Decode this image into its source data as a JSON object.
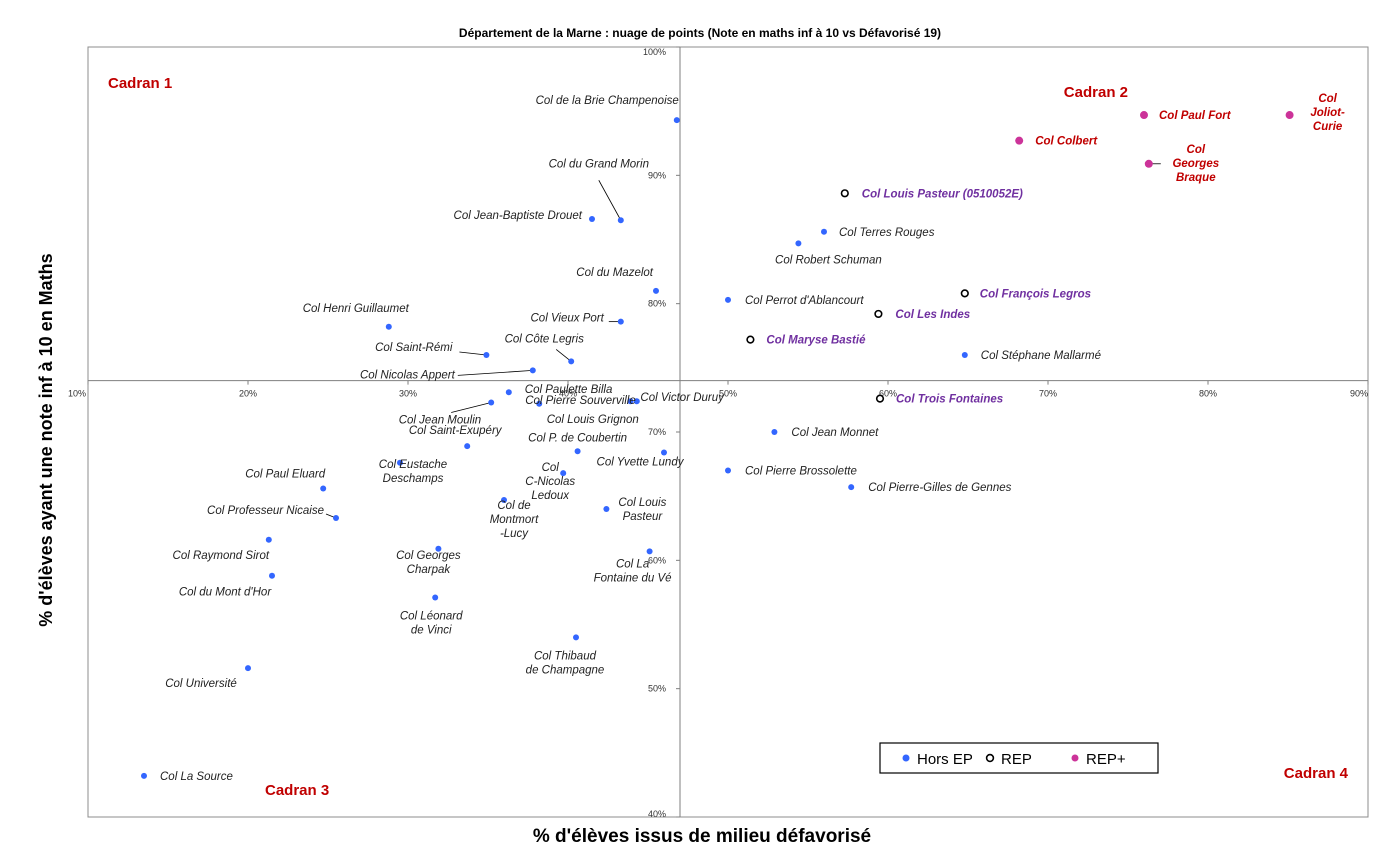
{
  "chart_data": {
    "type": "scatter",
    "title": "Département de la Marne :  nuage de points (Note en maths inf à 10 vs Défavorisé 19)",
    "xlabel": "% d'élèves issus de milieu défavorisé",
    "ylabel": "% d'élèves ayant une note  inf à 10 en Maths",
    "xlim": [
      10,
      90
    ],
    "ylim": [
      40,
      100
    ],
    "cross_at": {
      "x": 47,
      "y": 74
    },
    "x_ticks": [
      "10%",
      "20%",
      "30%",
      "40%",
      "50%",
      "60%",
      "70%",
      "80%",
      "90%"
    ],
    "y_ticks": [
      "40%",
      "50%",
      "60%",
      "70%",
      "80%",
      "90%",
      "100%"
    ],
    "grid": false,
    "legend_position": "bottom-right",
    "legend": [
      {
        "name": "Hors EP",
        "marker": "filled",
        "color": "#3366ff"
      },
      {
        "name": "REP",
        "marker": "ring",
        "color": "#000000"
      },
      {
        "name": "REP+",
        "marker": "filled",
        "color": "#cc3399"
      }
    ],
    "quadrants": [
      "Cadran 1",
      "Cadran 2",
      "Cadran 3",
      "Cadran 4"
    ],
    "colors": {
      "Hors EP": "#3366ff",
      "REP": "#000000",
      "REP+": "#cc3399",
      "rep_label": "#7030a0",
      "repplus_label": "#c00000",
      "hors_label": "#222222",
      "quadrant": "#c00000"
    },
    "points": [
      {
        "label": "Col de la Brie Champenoise",
        "x": 46.8,
        "y": 94.3,
        "cat": "Hors EP"
      },
      {
        "label": "Col du Grand Morin",
        "x": 43.3,
        "y": 86.5,
        "cat": "Hors EP"
      },
      {
        "label": "Col Jean-Baptiste Drouet",
        "x": 41.5,
        "y": 86.6,
        "cat": "Hors EP"
      },
      {
        "label": "Col du Mazelot",
        "x": 45.5,
        "y": 81.0,
        "cat": "Hors EP"
      },
      {
        "label": "Col Henri Guillaumet",
        "x": 28.8,
        "y": 78.2,
        "cat": "Hors EP"
      },
      {
        "label": "Col Vieux Port",
        "x": 43.3,
        "y": 78.6,
        "cat": "Hors EP"
      },
      {
        "label": "Col Saint-Rémi",
        "x": 34.9,
        "y": 76.0,
        "cat": "Hors EP"
      },
      {
        "label": "Col Côte Legris",
        "x": 40.2,
        "y": 75.5,
        "cat": "Hors EP"
      },
      {
        "label": "Col Nicolas Appert",
        "x": 37.8,
        "y": 74.8,
        "cat": "Hors EP"
      },
      {
        "label": "Col Paulette Billa",
        "x": 36.3,
        "y": 73.1,
        "cat": "Hors EP"
      },
      {
        "label": "Col Jean Moulin",
        "x": 35.2,
        "y": 72.3,
        "cat": "Hors EP"
      },
      {
        "label": "Col Pierre Souverville",
        "x": 38.2,
        "y": 72.2,
        "cat": "Hors EP"
      },
      {
        "label": "Col Victor Duruy",
        "x": 43.9,
        "y": 72.4,
        "cat": "Hors EP"
      },
      {
        "label": "Col Louis Grignon",
        "x": 44.3,
        "y": 72.4,
        "cat": "Hors EP"
      },
      {
        "label": "Col P. de Coubertin",
        "x": 40.6,
        "y": 68.5,
        "cat": "Hors EP"
      },
      {
        "label": "Col Yvette Lundy",
        "x": 46.0,
        "y": 68.4,
        "cat": "Hors EP"
      },
      {
        "label": "Col Saint-Exupéry",
        "x": 33.7,
        "y": 68.9,
        "cat": "Hors EP"
      },
      {
        "label": "Col C-Nicolas Ledoux",
        "x": 39.7,
        "y": 66.8,
        "cat": "Hors EP"
      },
      {
        "label": "Col Eustache Deschamps",
        "x": 29.5,
        "y": 67.6,
        "cat": "Hors EP"
      },
      {
        "label": "Col Paul Eluard",
        "x": 24.7,
        "y": 65.6,
        "cat": "Hors EP"
      },
      {
        "label": "Col de Montmort -Lucy",
        "x": 36.0,
        "y": 64.7,
        "cat": "Hors EP"
      },
      {
        "label": "Col Louis Pasteur",
        "x": 42.4,
        "y": 64.0,
        "cat": "Hors EP"
      },
      {
        "label": "Col Professeur Nicaise",
        "x": 25.5,
        "y": 63.3,
        "cat": "Hors EP"
      },
      {
        "label": "Col Raymond Sirot",
        "x": 21.3,
        "y": 61.6,
        "cat": "Hors EP"
      },
      {
        "label": "Col Georges Charpak",
        "x": 31.9,
        "y": 60.9,
        "cat": "Hors EP"
      },
      {
        "label": "Col La Fontaine du Vé",
        "x": 45.1,
        "y": 60.7,
        "cat": "Hors EP"
      },
      {
        "label": "Col du Mont d'Hor",
        "x": 21.5,
        "y": 58.8,
        "cat": "Hors EP"
      },
      {
        "label": "Col Léonard de Vinci",
        "x": 31.7,
        "y": 57.1,
        "cat": "Hors EP"
      },
      {
        "label": "Col Thibaud de Champagne",
        "x": 40.5,
        "y": 54.0,
        "cat": "Hors EP"
      },
      {
        "label": "Col Université",
        "x": 20.0,
        "y": 51.6,
        "cat": "Hors EP"
      },
      {
        "label": "Col La Source",
        "x": 13.5,
        "y": 43.2,
        "cat": "Hors EP"
      },
      {
        "label": "Col Perrot d'Ablancourt",
        "x": 50.0,
        "y": 80.3,
        "cat": "Hors EP"
      },
      {
        "label": "Col Terres Rouges",
        "x": 56.0,
        "y": 85.6,
        "cat": "Hors EP"
      },
      {
        "label": "Col Robert Schuman",
        "x": 54.4,
        "y": 84.7,
        "cat": "Hors EP"
      },
      {
        "label": "Col Stéphane Mallarmé",
        "x": 64.8,
        "y": 76.0,
        "cat": "Hors EP"
      },
      {
        "label": "Col Jean Monnet",
        "x": 52.9,
        "y": 70.0,
        "cat": "Hors EP"
      },
      {
        "label": "Col Pierre Brossolette",
        "x": 50.0,
        "y": 67.0,
        "cat": "Hors EP"
      },
      {
        "label": "Col Pierre-Gilles de Gennes",
        "x": 57.7,
        "y": 65.7,
        "cat": "Hors EP"
      },
      {
        "label": "Col Louis Pasteur (0510052E)",
        "x": 57.3,
        "y": 88.6,
        "cat": "REP"
      },
      {
        "label": "Col François Legros",
        "x": 64.8,
        "y": 80.8,
        "cat": "REP"
      },
      {
        "label": "Col Les Indes",
        "x": 59.4,
        "y": 79.2,
        "cat": "REP"
      },
      {
        "label": "Col Maryse Bastié",
        "x": 51.4,
        "y": 77.2,
        "cat": "REP"
      },
      {
        "label": "Col Trois Fontaines",
        "x": 59.5,
        "y": 72.6,
        "cat": "REP"
      },
      {
        "label": "Col Paul Fort",
        "x": 76.0,
        "y": 94.7,
        "cat": "REP+"
      },
      {
        "label": "Col Joliot-Curie",
        "x": 85.1,
        "y": 94.7,
        "cat": "REP+"
      },
      {
        "label": "Col Colbert",
        "x": 68.2,
        "y": 92.7,
        "cat": "REP+"
      },
      {
        "label": "Col Georges Braque",
        "x": 76.3,
        "y": 90.9,
        "cat": "REP+"
      }
    ]
  }
}
